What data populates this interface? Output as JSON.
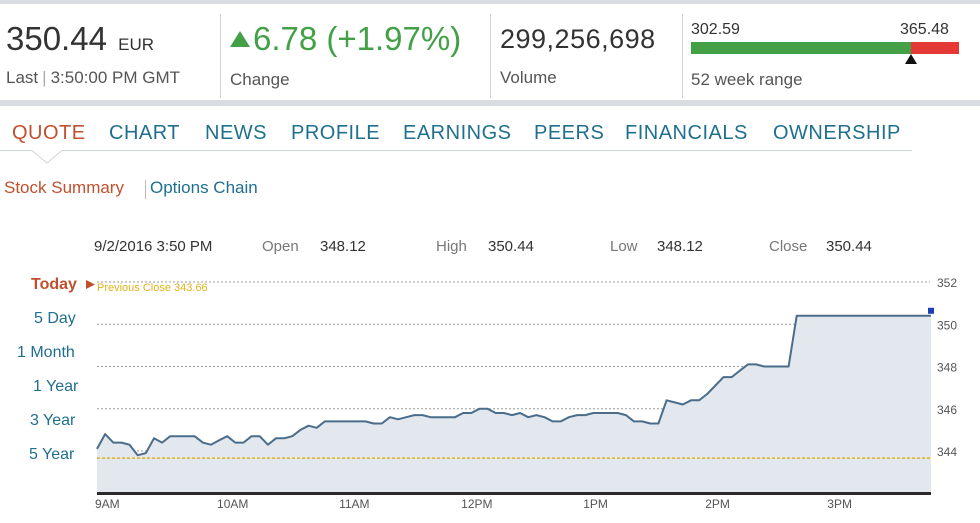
{
  "quote": {
    "price": "350.44",
    "currency": "EUR",
    "last_label": "Last",
    "time": "3:50:00 PM GMT",
    "change": "6.78 (+1.97%)",
    "change_label": "Change",
    "volume": "299,256,698",
    "volume_label": "Volume",
    "range_low": "302.59",
    "range_high": "365.48",
    "range_label": "52 week range",
    "range_position": 0.82
  },
  "tabs": [
    "QUOTE",
    "CHART",
    "NEWS",
    "PROFILE",
    "EARNINGS",
    "PEERS",
    "FINANCIALS",
    "OWNERSHIP"
  ],
  "active_tab": "QUOTE",
  "subnav": {
    "active": "Stock Summary",
    "other": "Options Chain"
  },
  "ohlc": {
    "datetime": "9/2/2016 3:50 PM",
    "open_label": "Open",
    "open": "348.12",
    "high_label": "High",
    "high": "350.44",
    "low_label": "Low",
    "low": "348.12",
    "close_label": "Close",
    "close": "350.44"
  },
  "ranges": [
    "Today",
    "5 Day",
    "1 Month",
    "1 Year",
    "3 Year",
    "5 Year"
  ],
  "active_range": "Today",
  "previous_close_label": "Previous Close 343.66",
  "colors": {
    "accent": "#c0502e",
    "link": "#1f6f8f",
    "up": "#43a047",
    "down": "#e53935",
    "line": "#4a6d8c",
    "fill": "#e3e8ee",
    "prev_close": "#e0b21c"
  },
  "chart_data": {
    "type": "area",
    "ylim": [
      342.5,
      352.5
    ],
    "yticks": [
      352,
      350,
      348,
      346,
      344
    ],
    "ytick_labels": [
      "352",
      "350",
      "348",
      "346",
      "344"
    ],
    "xticks": [
      "9AM",
      "10AM",
      "11AM",
      "12PM",
      "1PM",
      "2PM",
      "3PM"
    ],
    "xtick_positions_min": [
      0,
      60,
      120,
      180,
      240,
      300,
      360
    ],
    "previous_close": 343.66,
    "x_minutes": [
      0,
      4,
      8,
      12,
      16,
      20,
      24,
      28,
      32,
      36,
      40,
      44,
      48,
      52,
      56,
      60,
      64,
      68,
      72,
      76,
      80,
      84,
      88,
      92,
      96,
      100,
      104,
      108,
      112,
      116,
      120,
      124,
      128,
      132,
      136,
      140,
      144,
      148,
      152,
      156,
      160,
      164,
      168,
      172,
      176,
      180,
      184,
      188,
      192,
      196,
      200,
      204,
      208,
      212,
      216,
      220,
      224,
      228,
      232,
      236,
      240,
      244,
      248,
      252,
      256,
      260,
      264,
      268,
      272,
      276,
      280,
      284,
      288,
      292,
      296,
      300,
      304,
      308,
      312,
      316,
      320,
      324,
      328,
      332,
      336,
      340,
      344,
      348,
      352,
      356,
      360,
      364,
      368,
      372,
      376,
      380,
      384,
      388,
      392,
      396,
      400,
      404,
      408,
      410
    ],
    "values": [
      344.1,
      344.8,
      344.4,
      344.4,
      344.3,
      343.8,
      343.9,
      344.6,
      344.4,
      344.7,
      344.7,
      344.7,
      344.7,
      344.4,
      344.3,
      344.5,
      344.7,
      344.4,
      344.4,
      344.7,
      344.7,
      344.3,
      344.6,
      344.6,
      344.7,
      345.0,
      345.2,
      345.1,
      345.4,
      345.4,
      345.4,
      345.4,
      345.4,
      345.4,
      345.3,
      345.3,
      345.6,
      345.5,
      345.6,
      345.7,
      345.7,
      345.6,
      345.6,
      345.6,
      345.6,
      345.8,
      345.8,
      346.0,
      346.0,
      345.8,
      345.8,
      345.7,
      345.8,
      345.6,
      345.7,
      345.6,
      345.4,
      345.4,
      345.6,
      345.7,
      345.7,
      345.8,
      345.8,
      345.8,
      345.8,
      345.7,
      345.4,
      345.4,
      345.3,
      345.3,
      346.4,
      346.3,
      346.2,
      346.4,
      346.4,
      346.7,
      347.1,
      347.5,
      347.5,
      347.8,
      348.1,
      348.1,
      348.0,
      348.0,
      348.0,
      348.0,
      350.4,
      350.4,
      350.4,
      350.4,
      350.4,
      350.4,
      350.4,
      350.4,
      350.4,
      350.4,
      350.4,
      350.4,
      350.4,
      350.4,
      350.4,
      350.4,
      350.4,
      350.4
    ]
  }
}
